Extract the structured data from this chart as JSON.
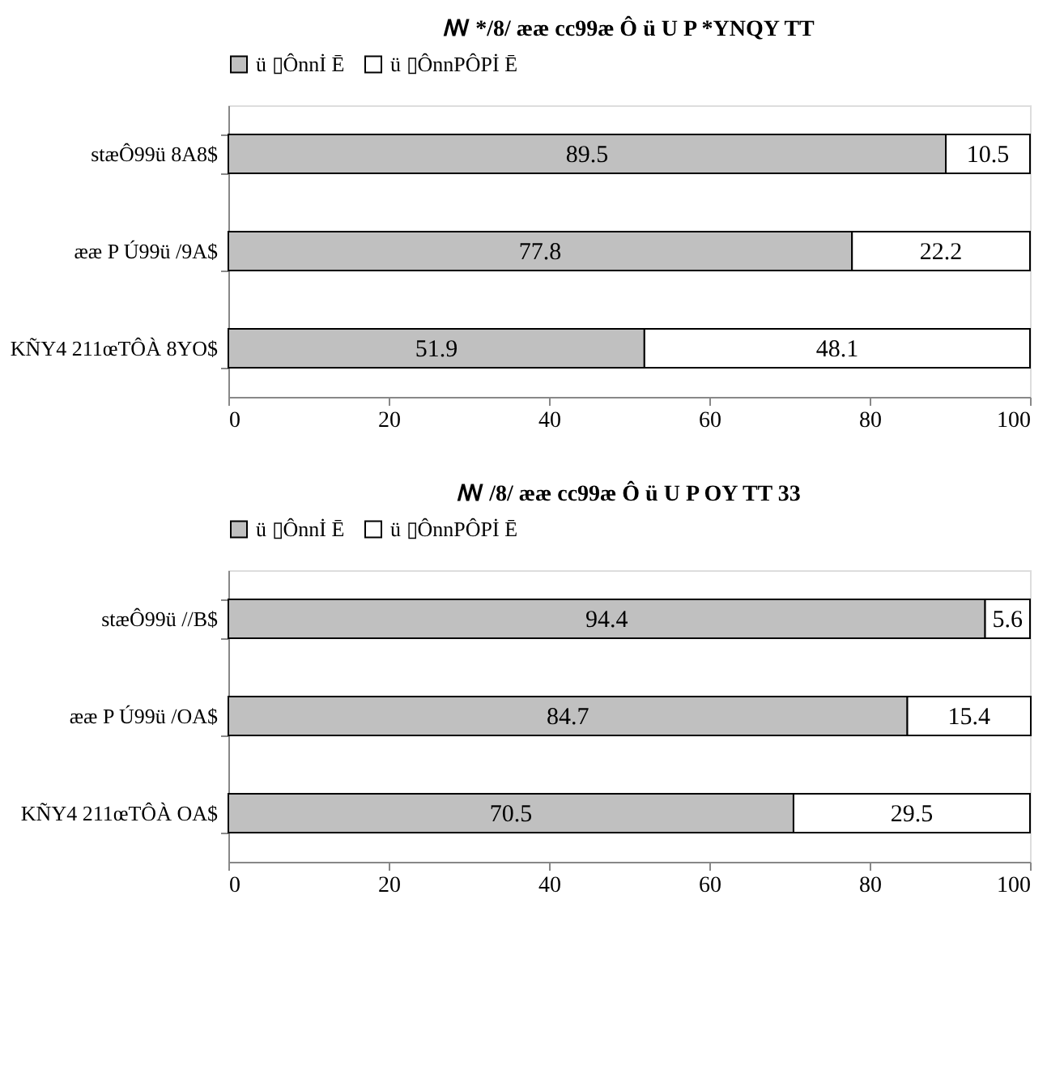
{
  "chart_data": [
    {
      "type": "bar",
      "orientation": "horizontal",
      "stacked": true,
      "title": "ꟿ */8/  ææ cc99æ Ô ü U P *YNQY TT",
      "categories": [
        "stæÔ99ü 8A8$",
        "ææ P Ú99ü /9A$",
        "KÑY4 211œTÔÀ 8YO$"
      ],
      "series": [
        {
          "name": "ü ▯Ônnİ Ē",
          "color": "#c0c0c0",
          "values": [
            89.5,
            77.8,
            51.9
          ]
        },
        {
          "name": "ü ▯ÔnnPÔPİ Ē",
          "color": "#ffffff",
          "values": [
            10.5,
            22.2,
            48.1
          ]
        }
      ],
      "xlim": [
        0,
        100
      ],
      "xticks": [
        0,
        20,
        40,
        60,
        80,
        100
      ],
      "grid": false,
      "legend": "top",
      "data_labels": true
    },
    {
      "type": "bar",
      "orientation": "horizontal",
      "stacked": true,
      "title": "ꟿ /8/  ææ cc99æ Ô ü U P OY TT 33",
      "categories": [
        "stæÔ99ü //B$",
        "ææ P Ú99ü /OA$",
        "KÑY4 211œTÔÀ OA$"
      ],
      "series": [
        {
          "name": "ü ▯Ônnİ Ē",
          "color": "#c0c0c0",
          "values": [
            94.4,
            84.7,
            70.5
          ]
        },
        {
          "name": "ü ▯ÔnnPÔPİ Ē",
          "color": "#ffffff",
          "values": [
            5.6,
            15.4,
            29.5
          ]
        }
      ],
      "xlim": [
        0,
        100
      ],
      "xticks": [
        0,
        20,
        40,
        60,
        80,
        100
      ],
      "grid": false,
      "legend": "top",
      "data_labels": true
    }
  ]
}
